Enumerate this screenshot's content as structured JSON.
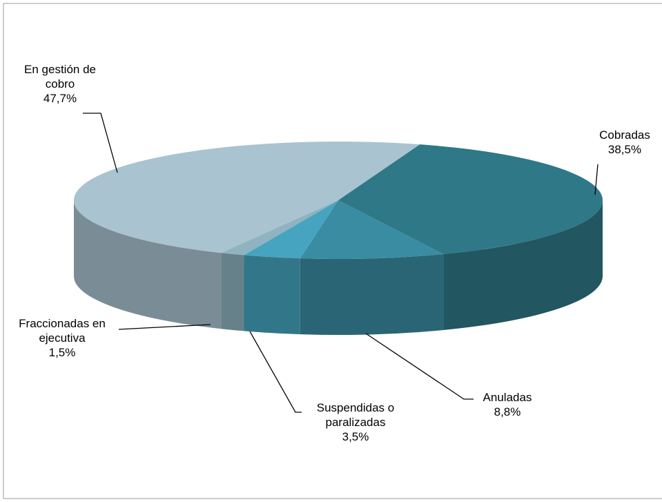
{
  "chart_data": {
    "type": "pie3d",
    "categories": [
      "En gestión de cobro",
      "Cobradas",
      "Anuladas",
      "Suspendidas o paralizadas",
      "Fraccionadas en ejecutiva"
    ],
    "values": [
      47.7,
      38.5,
      8.8,
      3.5,
      1.5
    ],
    "value_labels": [
      "47,7%",
      "38,5%",
      "8,8%",
      "3,5%",
      "1,5%"
    ],
    "colors": [
      "#a9c4d0",
      "#2f7887",
      "#3a8ca2",
      "#46a4c0",
      "#8fb3c0"
    ]
  }
}
